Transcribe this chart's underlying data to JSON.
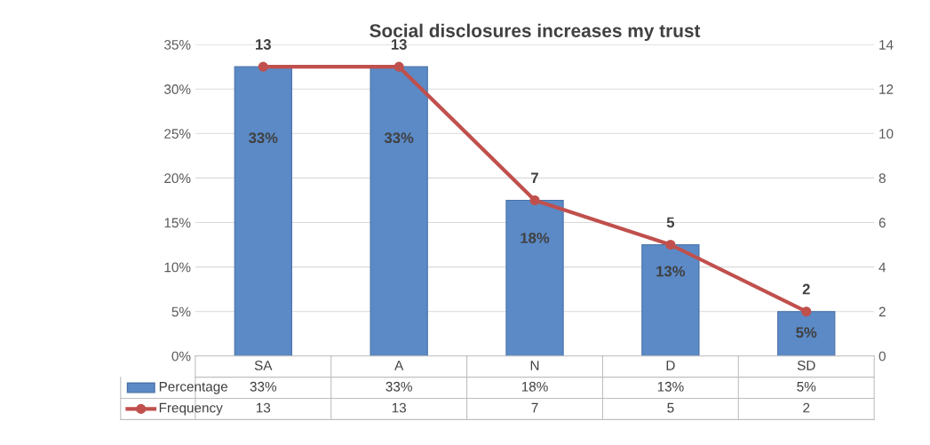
{
  "chart_data": {
    "type": "bar",
    "title": "Social disclosures increases my trust",
    "categories": [
      "SA",
      "A",
      "N",
      "D",
      "SD"
    ],
    "series": [
      {
        "name": "Percentage",
        "color": "#5b8ac6",
        "values": [
          32.5,
          32.5,
          17.5,
          12.5,
          5
        ],
        "value_labels": [
          "33%",
          "33%",
          "18%",
          "13%",
          "5%"
        ]
      },
      {
        "name": "Frequency",
        "type": "line",
        "axis": "y2",
        "color": "#c0504d",
        "marker": "circle",
        "values": [
          13,
          13,
          7,
          5,
          2
        ],
        "value_labels": [
          "13",
          "13",
          "7",
          "5",
          "2"
        ]
      }
    ],
    "ylim": [
      0,
      35
    ],
    "yticks": [
      {
        "value": 0,
        "label": "0%"
      },
      {
        "value": 5,
        "label": "5%"
      },
      {
        "value": 10,
        "label": "10%"
      },
      {
        "value": 15,
        "label": "15%"
      },
      {
        "value": 20,
        "label": "20%"
      },
      {
        "value": 25,
        "label": "25%"
      },
      {
        "value": 30,
        "label": "30%"
      },
      {
        "value": 35,
        "label": "35%"
      }
    ],
    "y2lim": [
      0,
      14
    ],
    "y2ticks": [
      0,
      2,
      4,
      6,
      8,
      10,
      12,
      14
    ],
    "grid": "y",
    "legend": "bottom",
    "data_labels": true
  }
}
